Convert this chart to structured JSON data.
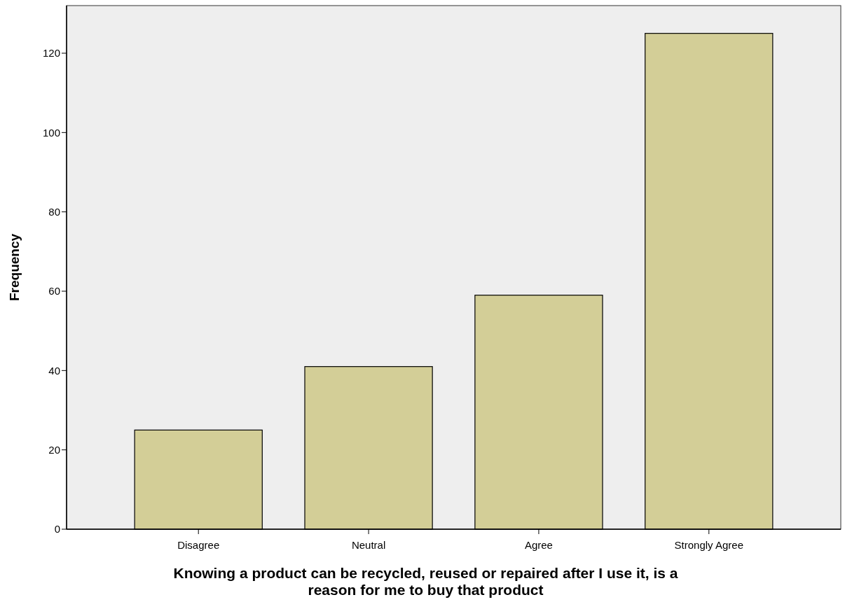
{
  "chart_data": {
    "type": "bar",
    "categories": [
      "Disagree",
      "Neutral",
      "Agree",
      "Strongly Agree"
    ],
    "values": [
      25,
      41,
      59,
      125
    ],
    "color": "#d3ce97",
    "ylim": [
      0,
      132
    ],
    "yticks": [
      0,
      20,
      40,
      60,
      80,
      100,
      120
    ],
    "xlabel": "Knowing a product can be recycled, reused or repaired after I use it, is a reason for me to buy that product",
    "ylabel": "Frequency",
    "grid": false
  }
}
